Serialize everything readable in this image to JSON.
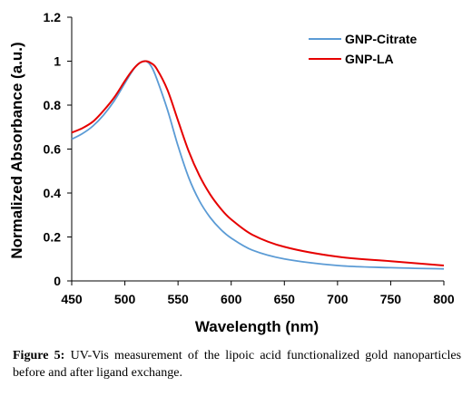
{
  "caption": {
    "label": "Figure 5:",
    "text": "UV-Vis measurement of the lipoic acid functionalized gold nanoparticles before and after ligand exchange."
  },
  "chart_data": {
    "type": "line",
    "title": "",
    "xlabel": "Wavelength (nm)",
    "ylabel": "Normalized Absorbance (a.u.)",
    "xlim": [
      450,
      800
    ],
    "ylim": [
      0,
      1.2
    ],
    "xticks": [
      "450",
      "500",
      "550",
      "600",
      "650",
      "700",
      "750",
      "800"
    ],
    "yticks": [
      "0",
      "0.2",
      "0.4",
      "0.6",
      "0.8",
      "1",
      "1.2"
    ],
    "grid": false,
    "legend_position": "top-right",
    "series": [
      {
        "name": "GNP-Citrate",
        "color": "#5b9bd5",
        "x": [
          450,
          460,
          470,
          480,
          490,
          500,
          505,
          510,
          515,
          520,
          525,
          530,
          540,
          550,
          560,
          570,
          580,
          590,
          600,
          620,
          650,
          700,
          750,
          800
        ],
        "y": [
          0.645,
          0.67,
          0.705,
          0.755,
          0.82,
          0.9,
          0.94,
          0.975,
          0.995,
          1.0,
          0.975,
          0.92,
          0.78,
          0.615,
          0.47,
          0.365,
          0.29,
          0.235,
          0.195,
          0.14,
          0.1,
          0.07,
          0.06,
          0.055
        ]
      },
      {
        "name": "GNP-LA",
        "color": "#e60000",
        "x": [
          450,
          460,
          470,
          480,
          490,
          500,
          505,
          510,
          515,
          520,
          525,
          530,
          540,
          550,
          560,
          570,
          580,
          590,
          600,
          620,
          650,
          700,
          750,
          800
        ],
        "y": [
          0.675,
          0.695,
          0.725,
          0.775,
          0.835,
          0.91,
          0.945,
          0.975,
          0.995,
          1.0,
          0.99,
          0.965,
          0.87,
          0.73,
          0.59,
          0.48,
          0.395,
          0.33,
          0.28,
          0.21,
          0.155,
          0.11,
          0.09,
          0.07
        ]
      }
    ]
  }
}
